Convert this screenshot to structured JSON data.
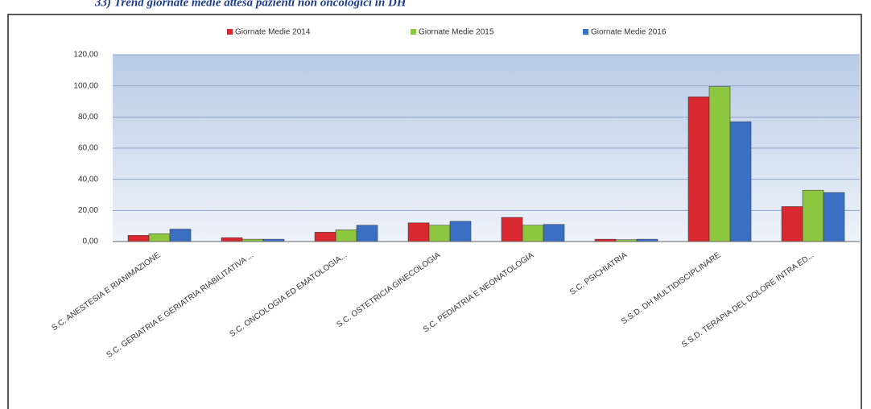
{
  "chart_data": {
    "type": "bar",
    "title": "33) Trend giornate medie attesa pazienti non oncologici in DH",
    "categories": [
      "S.C. ANESTESIA E RIANIMAZIONE",
      "S.C. GERIATRIA E GERIATRIA RIABILITATIVA ...",
      "S.C. ONCOLOGIA ED EMATOLOGIA...",
      "S.C. OSTETRICIA GINECOLOGIA",
      "S.C. PEDIATRIA E NEONATOLOGIA",
      "S.C. PSICHIATRIA",
      "S.S.D. DH MULTIDISCIPLINARE",
      "S.S.D. TERAPIA DEL DOLORE INTRA ED..."
    ],
    "series": [
      {
        "name": "Giornate Medie 2014",
        "color": "#d9282f",
        "values": [
          4,
          2.5,
          6,
          12,
          15.5,
          1.5,
          93,
          22.5
        ]
      },
      {
        "name": "Giornate Medie 2015",
        "color": "#8dc63f",
        "values": [
          5,
          1.5,
          7.5,
          10.5,
          10.5,
          1.2,
          99.5,
          33
        ]
      },
      {
        "name": "Giornate Medie 2016",
        "color": "#3a6fc4",
        "values": [
          8,
          1.5,
          10.5,
          13,
          11,
          1.5,
          77,
          31.5
        ]
      }
    ],
    "ylim": [
      0,
      120
    ],
    "yticks": [
      {
        "value": 0,
        "label": "0,00"
      },
      {
        "value": 20,
        "label": "20,00"
      },
      {
        "value": 40,
        "label": "40,00"
      },
      {
        "value": 60,
        "label": "60,00"
      },
      {
        "value": 80,
        "label": "80,00"
      },
      {
        "value": 100,
        "label": "100,00"
      },
      {
        "value": 120,
        "label": "120,00"
      }
    ],
    "grid": true
  }
}
